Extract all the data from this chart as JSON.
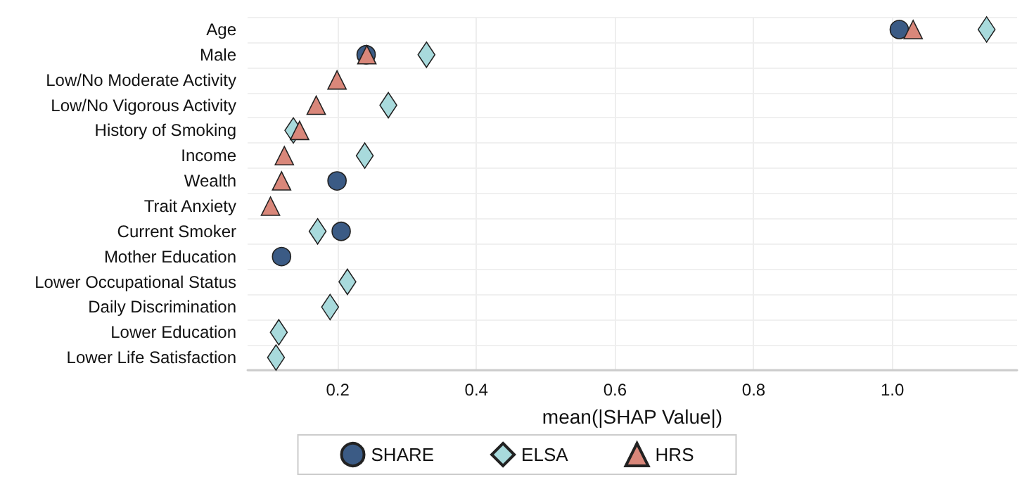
{
  "chart_data": {
    "type": "scatter",
    "orientation": "horizontal",
    "xlabel": "mean(|SHAP Value|)",
    "categories": [
      "Age",
      "Male",
      "Low/No Moderate Activity",
      "Low/No Vigorous Activity",
      "History of Smoking",
      "Income",
      "Wealth",
      "Trait Anxiety",
      "Current Smoker",
      "Mother Education",
      "Lower Occupational Status",
      "Daily Discrimination",
      "Lower Education",
      "Lower Life Satisfaction"
    ],
    "series": [
      {
        "name": "SHARE",
        "color": "#3b5b85",
        "marker": "circle",
        "values": [
          1.01,
          0.241,
          null,
          null,
          null,
          null,
          0.199,
          null,
          0.205,
          0.119,
          null,
          null,
          null,
          null
        ]
      },
      {
        "name": "ELSA",
        "color": "#a8dadc",
        "marker": "diamond",
        "values": [
          1.136,
          0.328,
          null,
          0.273,
          0.136,
          0.239,
          null,
          null,
          0.171,
          null,
          0.214,
          0.189,
          0.115,
          0.111
        ]
      },
      {
        "name": "HRS",
        "color": "#d9877a",
        "marker": "triangle",
        "values": [
          1.03,
          0.242,
          0.199,
          0.169,
          0.145,
          0.123,
          0.119,
          0.103,
          null,
          null,
          null,
          null,
          null,
          null
        ]
      }
    ],
    "xlim": [
      0.07,
      1.18
    ],
    "xticks": [
      0.2,
      0.4,
      0.6,
      0.8,
      {
        "value": 1,
        "label": "1.0"
      }
    ],
    "grid": true,
    "legend": "bottom"
  }
}
